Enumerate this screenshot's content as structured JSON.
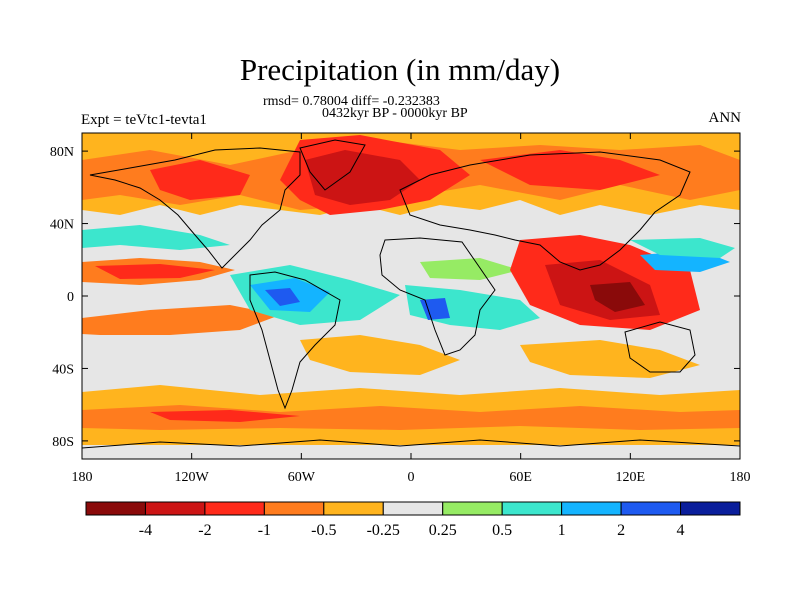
{
  "header": {
    "title": "Precipitation (in mm/day)",
    "stats_line": "rmsd= 0.78004 diff= -0.232383",
    "period_line": "0432kyr BP - 0000kyr BP",
    "experiment_label": "Expt = teVtc1-tevta1",
    "season_label": "ANN"
  },
  "axes": {
    "x_tick_labels": [
      "180",
      "120W",
      "60W",
      "0",
      "60E",
      "120E",
      "180"
    ],
    "x_tick_lons": [
      -180,
      -120,
      -60,
      0,
      60,
      120,
      180
    ],
    "y_tick_labels": [
      "80N",
      "40N",
      "0",
      "40S",
      "80S"
    ],
    "y_tick_lats": [
      80,
      40,
      0,
      -40,
      -80
    ],
    "lon_range": [
      -180,
      180
    ],
    "lat_range": [
      -90,
      90
    ]
  },
  "colorbar": {
    "colors": [
      "#8a0a0a",
      "#cc1414",
      "#ff2a1a",
      "#ff7c1e",
      "#ffb41e",
      "#e6e6e6",
      "#96eb64",
      "#3ce6cd",
      "#14b4ff",
      "#1e5af0",
      "#0a1e9b"
    ],
    "labels": [
      "-4",
      "-2",
      "-1",
      "-0.5",
      "-0.25",
      "0.25",
      "0.5",
      "1",
      "2",
      "4"
    ],
    "boundaries": [
      -4,
      -2,
      -1,
      -0.5,
      -0.25,
      0.25,
      0.5,
      1,
      2,
      4
    ]
  },
  "map_regions": [
    {
      "name": "arctic-dry",
      "category": "-0.5",
      "color": "#ff7c1e"
    },
    {
      "name": "north-atlantic-dry",
      "category": "-2",
      "color": "#cc1414"
    },
    {
      "name": "east-pacific-dry-band",
      "category": "-1",
      "color": "#ff2a1a"
    },
    {
      "name": "indo-pacific-dry",
      "category": "-4",
      "color": "#8a0a0a"
    },
    {
      "name": "amazon-wet",
      "category": "4",
      "color": "#1e5af0"
    },
    {
      "name": "african-wet",
      "category": "2",
      "color": "#14b4ff"
    },
    {
      "name": "southern-ocean-dry",
      "category": "-0.25",
      "color": "#ffb41e"
    }
  ]
}
